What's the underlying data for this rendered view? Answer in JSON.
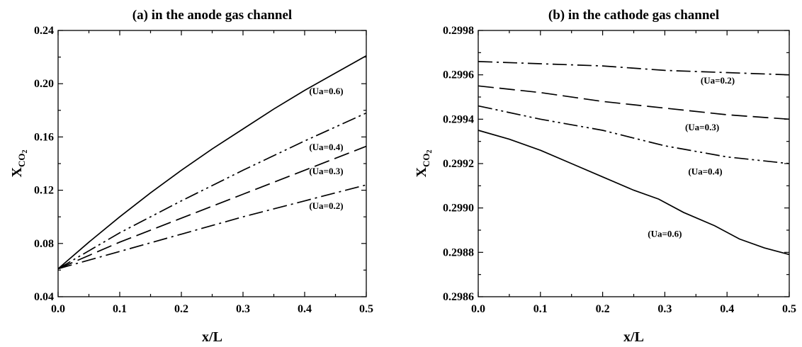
{
  "chart_data": [
    {
      "type": "line",
      "title": "(a) in the anode gas channel",
      "xlabel": "x/L",
      "ylabel": "X_CO2",
      "ylabel_main": "X",
      "ylabel_sub": "CO",
      "ylabel_subsub": "2",
      "xlim": [
        0.0,
        0.5
      ],
      "ylim": [
        0.04,
        0.24
      ],
      "xticks": [
        0.0,
        0.1,
        0.2,
        0.3,
        0.4,
        0.5
      ],
      "xtick_labels": [
        "0.0",
        "0.1",
        "0.2",
        "0.3",
        "0.4",
        "0.5"
      ],
      "yticks": [
        0.04,
        0.08,
        0.12,
        0.16,
        0.2,
        0.24
      ],
      "ytick_labels": [
        "0.04",
        "0.08",
        "0.12",
        "0.16",
        "0.20",
        "0.24"
      ],
      "grid": false,
      "series": [
        {
          "name": "(Ua=0.6)",
          "style": "solid",
          "label_at": [
            0.435,
            0.192
          ],
          "x": [
            0.0,
            0.05,
            0.1,
            0.15,
            0.2,
            0.25,
            0.3,
            0.35,
            0.4,
            0.45,
            0.5
          ],
          "y": [
            0.061,
            0.081,
            0.1,
            0.118,
            0.135,
            0.151,
            0.166,
            0.181,
            0.195,
            0.208,
            0.221
          ]
        },
        {
          "name": "(Ua=0.4)",
          "style": "dash-dot-dot",
          "label_at": [
            0.435,
            0.15
          ],
          "x": [
            0.0,
            0.1,
            0.2,
            0.3,
            0.4,
            0.5
          ],
          "y": [
            0.061,
            0.088,
            0.112,
            0.135,
            0.157,
            0.178
          ]
        },
        {
          "name": "(Ua=0.3)",
          "style": "dashed",
          "label_at": [
            0.435,
            0.132
          ],
          "x": [
            0.0,
            0.1,
            0.2,
            0.3,
            0.4,
            0.5
          ],
          "y": [
            0.061,
            0.081,
            0.099,
            0.117,
            0.135,
            0.153
          ]
        },
        {
          "name": "(Ua=0.2)",
          "style": "dash-dot",
          "label_at": [
            0.435,
            0.106
          ],
          "x": [
            0.0,
            0.1,
            0.2,
            0.3,
            0.4,
            0.5
          ],
          "y": [
            0.061,
            0.074,
            0.087,
            0.1,
            0.112,
            0.124
          ]
        }
      ]
    },
    {
      "type": "line",
      "title": "(b) in the cathode gas channel",
      "xlabel": "x/L",
      "ylabel": "X_CO2",
      "ylabel_main": "X",
      "ylabel_sub": "CO",
      "ylabel_subsub": "2",
      "xlim": [
        0.0,
        0.5
      ],
      "ylim": [
        0.2986,
        0.2998
      ],
      "xticks": [
        0.0,
        0.1,
        0.2,
        0.3,
        0.4,
        0.5
      ],
      "xtick_labels": [
        "0.0",
        "0.1",
        "0.2",
        "0.3",
        "0.4",
        "0.5"
      ],
      "yticks": [
        0.2986,
        0.2988,
        0.299,
        0.2992,
        0.2994,
        0.2996,
        0.2998
      ],
      "ytick_labels": [
        "0.2986",
        "0.2988",
        "0.2990",
        "0.2992",
        "0.2994",
        "0.2996",
        "0.2998"
      ],
      "grid": false,
      "series": [
        {
          "name": "(Ua=0.2)",
          "style": "dash-dot",
          "label_at": [
            0.385,
            0.29956
          ],
          "x": [
            0.0,
            0.1,
            0.2,
            0.3,
            0.4,
            0.5
          ],
          "y": [
            0.29966,
            0.29965,
            0.29964,
            0.29962,
            0.29961,
            0.2996
          ]
        },
        {
          "name": "(Ua=0.3)",
          "style": "dashed",
          "label_at": [
            0.36,
            0.29935
          ],
          "x": [
            0.0,
            0.1,
            0.2,
            0.3,
            0.4,
            0.5
          ],
          "y": [
            0.29955,
            0.29952,
            0.29948,
            0.29945,
            0.29942,
            0.2994
          ]
        },
        {
          "name": "(Ua=0.4)",
          "style": "dash-dot-dot",
          "label_at": [
            0.365,
            0.29915
          ],
          "x": [
            0.0,
            0.1,
            0.2,
            0.3,
            0.4,
            0.5
          ],
          "y": [
            0.29946,
            0.2994,
            0.29935,
            0.29928,
            0.29923,
            0.2992
          ]
        },
        {
          "name": "(Ua=0.6)",
          "style": "solid",
          "label_at": [
            0.3,
            0.29887
          ],
          "x": [
            0.0,
            0.05,
            0.1,
            0.15,
            0.2,
            0.25,
            0.29,
            0.33,
            0.38,
            0.42,
            0.46,
            0.5
          ],
          "y": [
            0.29935,
            0.29931,
            0.29926,
            0.2992,
            0.29914,
            0.29908,
            0.29904,
            0.29898,
            0.29892,
            0.29886,
            0.29882,
            0.29879
          ]
        }
      ]
    }
  ]
}
